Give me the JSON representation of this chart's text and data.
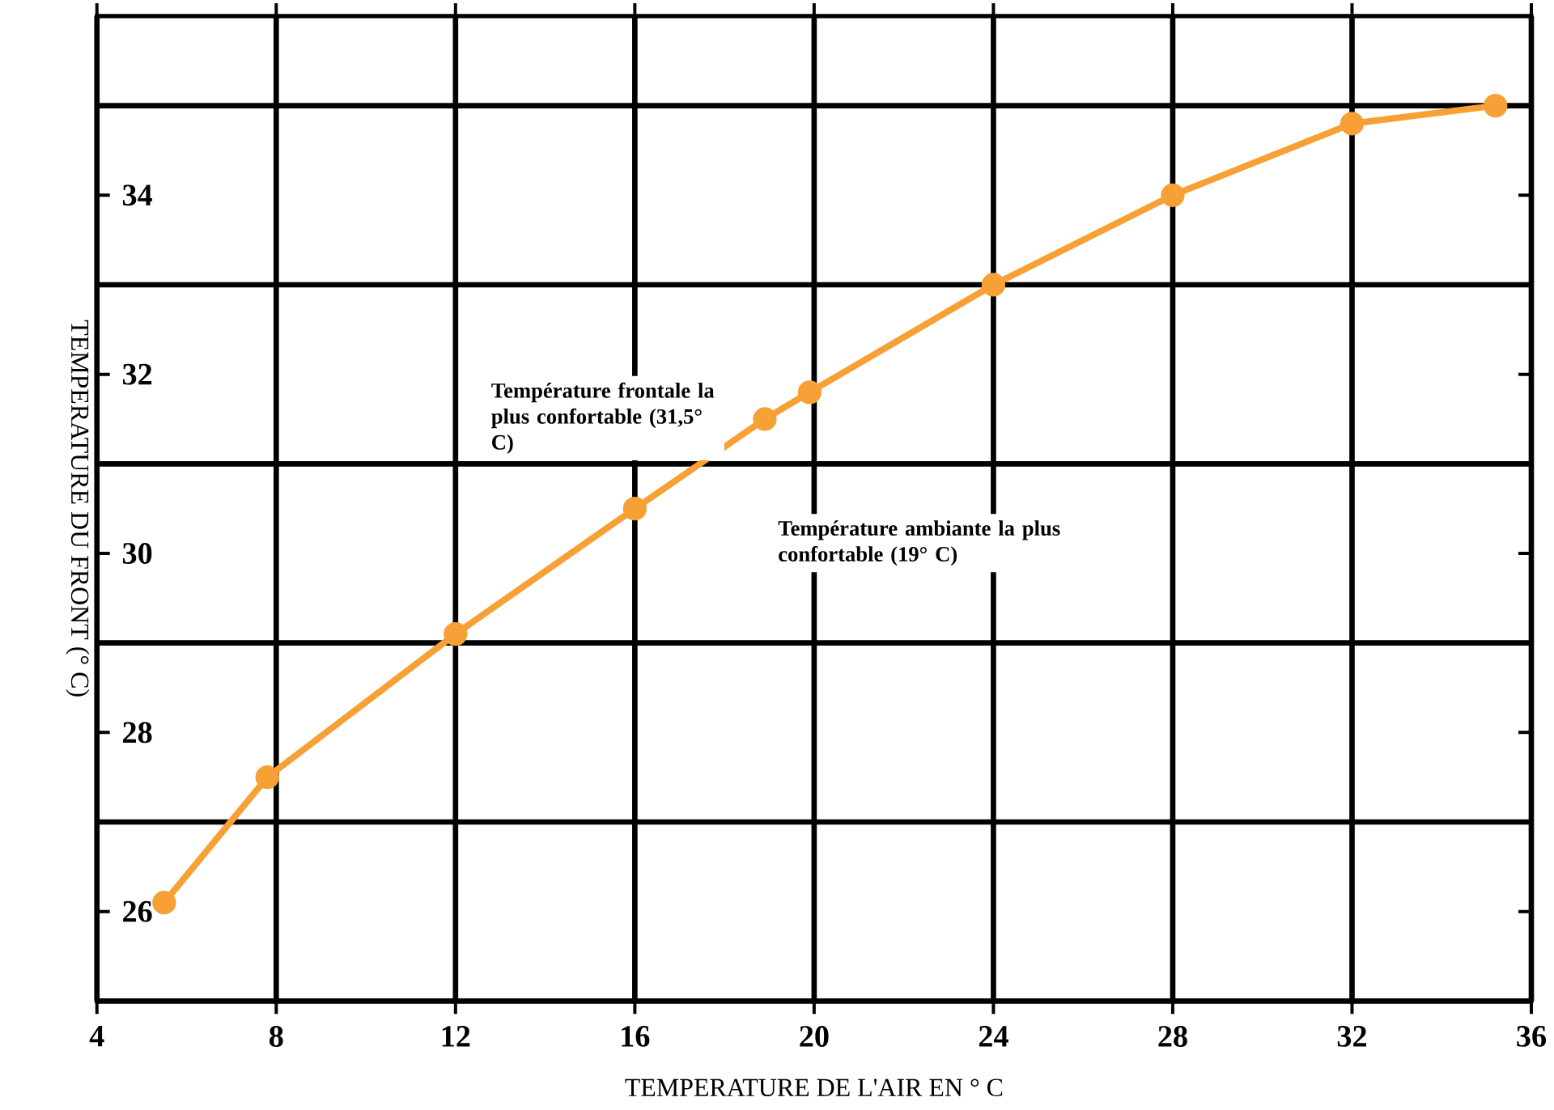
{
  "chart_data": {
    "type": "line",
    "xlabel": "TEMPERATURE DE L'AIR EN ° C",
    "ylabel": "TEMPERATURE DU FRONT (° C)",
    "x": [
      5.5,
      7.8,
      12,
      16,
      18.9,
      19.9,
      24,
      28,
      32,
      35.2
    ],
    "series": [
      {
        "color": "#f7a035",
        "values": [
          26.1,
          27.5,
          29.1,
          30.5,
          31.5,
          31.8,
          33.0,
          34.0,
          34.8,
          35.0
        ]
      }
    ],
    "marker": "circle",
    "xlim": [
      4,
      36
    ],
    "xticks": [
      4,
      8,
      12,
      16,
      20,
      24,
      28,
      32,
      36
    ],
    "ylim": [
      25,
      36
    ],
    "yticks": [
      {
        "value": 25,
        "label": null
      },
      26,
      {
        "value": 27,
        "label": null
      },
      28,
      {
        "value": 29,
        "label": null
      },
      30,
      {
        "value": 31,
        "label": null
      },
      32,
      {
        "value": 33,
        "label": null
      },
      34,
      {
        "value": 35,
        "label": null
      }
    ],
    "grid": true,
    "annotations": [
      "Température frontale la plus confortable (31,5° C)",
      "Température ambiante la plus confortable (19° C)"
    ]
  }
}
